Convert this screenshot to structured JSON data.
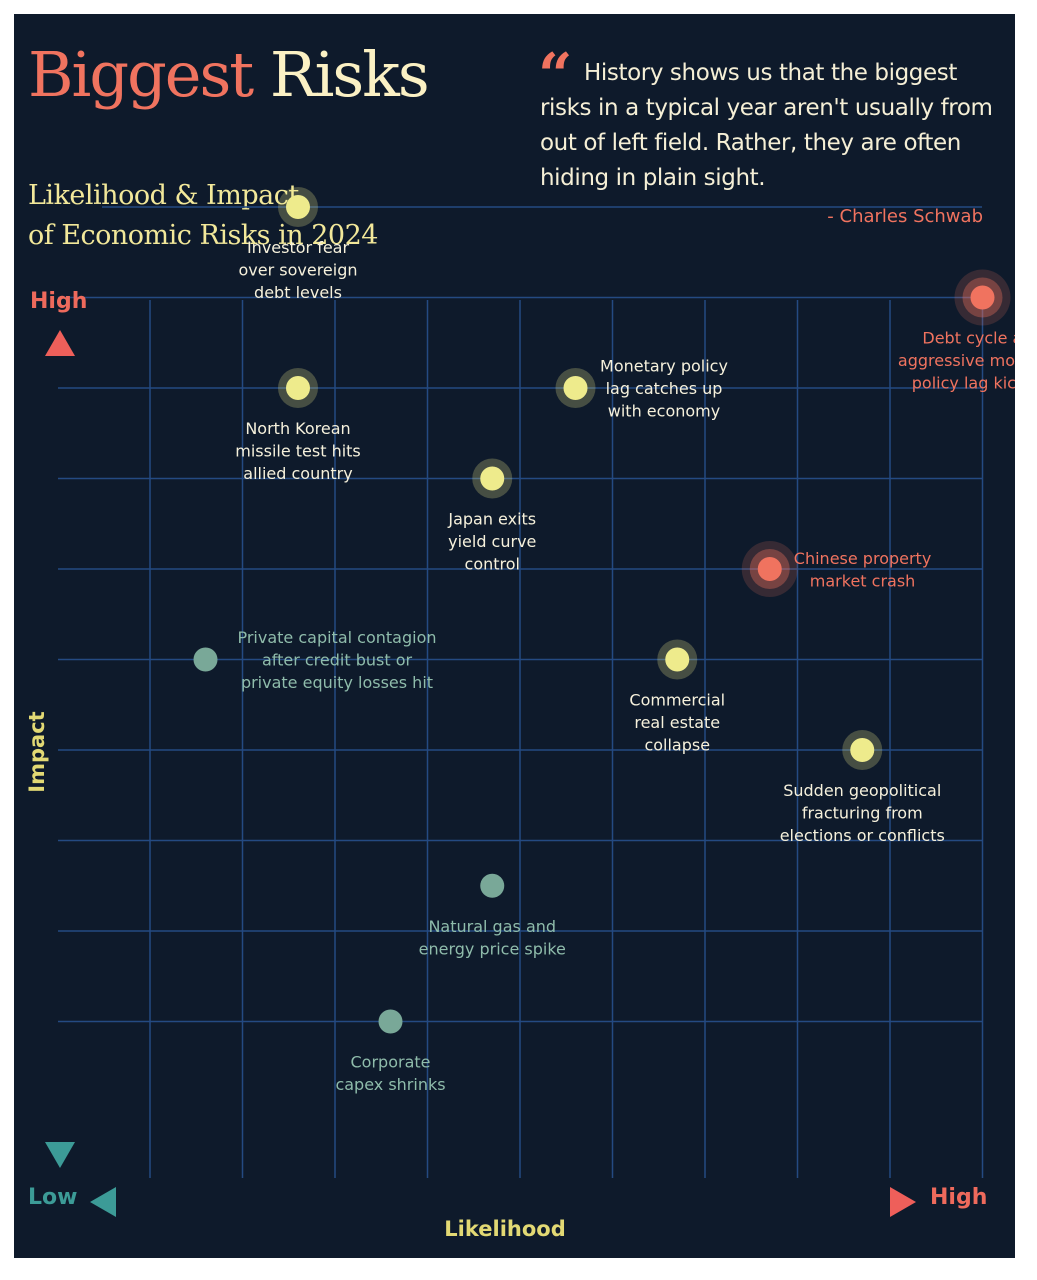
{
  "header": {
    "title_part1": "Biggest",
    "title_part2": "Risks",
    "subtitle_line1": "Likelihood & Impact",
    "subtitle_line2": "of Economic Risks in 2024"
  },
  "quote": {
    "mark": "“",
    "text": "History shows us that the biggest risks in a typical year aren't usually from out of left field. Rather, they are often hiding in plain sight.",
    "author": "- Charles Schwab"
  },
  "colors": {
    "background": "#0e1a2b",
    "grid": "#244a82",
    "high_risk": "#f0735f",
    "medium_risk": "#eeeb8c",
    "low_risk": "#79a898",
    "gradient_low": "#3c9b97",
    "gradient_mid": "#e6e27a",
    "gradient_high": "#ee5f5a"
  },
  "chart_data": {
    "type": "scatter",
    "xlabel": "Likelihood",
    "ylabel": "Impact",
    "x_low_label": "Low",
    "x_high_label": "High",
    "y_low_label": "Low",
    "y_high_label": "High",
    "xlim": [
      0,
      10
    ],
    "ylim": [
      0,
      10
    ],
    "grid": true,
    "points": [
      {
        "label": "Investor fear over sovereign debt levels",
        "lines": [
          "Investor fear",
          "over sovereign",
          "debt levels"
        ],
        "x": 1.6,
        "y": 10.0,
        "tier": "medium",
        "label_pos": "below"
      },
      {
        "label": "Debt cycle and aggressive monetary policy lag kicks in",
        "lines": [
          "Debt cycle and",
          "aggressive monetary",
          "policy lag kicks in"
        ],
        "x": 9.0,
        "y": 9.0,
        "tier": "high",
        "label_pos": "below"
      },
      {
        "label": "Monetary policy lag catches up with economy",
        "lines": [
          "Monetary policy",
          "lag catches up",
          "with economy"
        ],
        "x": 4.6,
        "y": 8.0,
        "tier": "medium",
        "label_pos": "right"
      },
      {
        "label": "North Korean missile test hits allied country",
        "lines": [
          "North Korean",
          "missile test hits",
          "allied country"
        ],
        "x": 1.6,
        "y": 8.0,
        "tier": "medium",
        "label_pos": "below"
      },
      {
        "label": "Japan exits yield curve control",
        "lines": [
          "Japan exits",
          "yield curve",
          "control"
        ],
        "x": 3.7,
        "y": 7.0,
        "tier": "medium",
        "label_pos": "below"
      },
      {
        "label": "Chinese property market crash",
        "lines": [
          "Chinese property",
          "market crash"
        ],
        "x": 6.7,
        "y": 6.0,
        "tier": "high",
        "label_pos": "right"
      },
      {
        "label": "Private capital contagion after credit bust or private equity losses hit",
        "lines": [
          "Private capital contagion",
          "after credit bust or",
          "private equity losses hit"
        ],
        "x": 0.6,
        "y": 5.0,
        "tier": "low",
        "label_pos": "right"
      },
      {
        "label": "Commercial real estate collapse",
        "lines": [
          "Commercial",
          "real estate",
          "collapse"
        ],
        "x": 5.7,
        "y": 5.0,
        "tier": "medium",
        "label_pos": "below"
      },
      {
        "label": "Sudden geopolitical fracturing from elections or conflicts",
        "lines": [
          "Sudden geopolitical",
          "fracturing from",
          "elections or conflicts"
        ],
        "x": 7.7,
        "y": 4.0,
        "tier": "medium",
        "label_pos": "below"
      },
      {
        "label": "Natural gas and energy price spike",
        "lines": [
          "Natural gas and",
          "energy price spike"
        ],
        "x": 3.7,
        "y": 2.5,
        "tier": "low",
        "label_pos": "below"
      },
      {
        "label": "Corporate capex shrinks",
        "lines": [
          "Corporate",
          "capex shrinks"
        ],
        "x": 2.6,
        "y": 1.0,
        "tier": "low",
        "label_pos": "below"
      }
    ]
  }
}
